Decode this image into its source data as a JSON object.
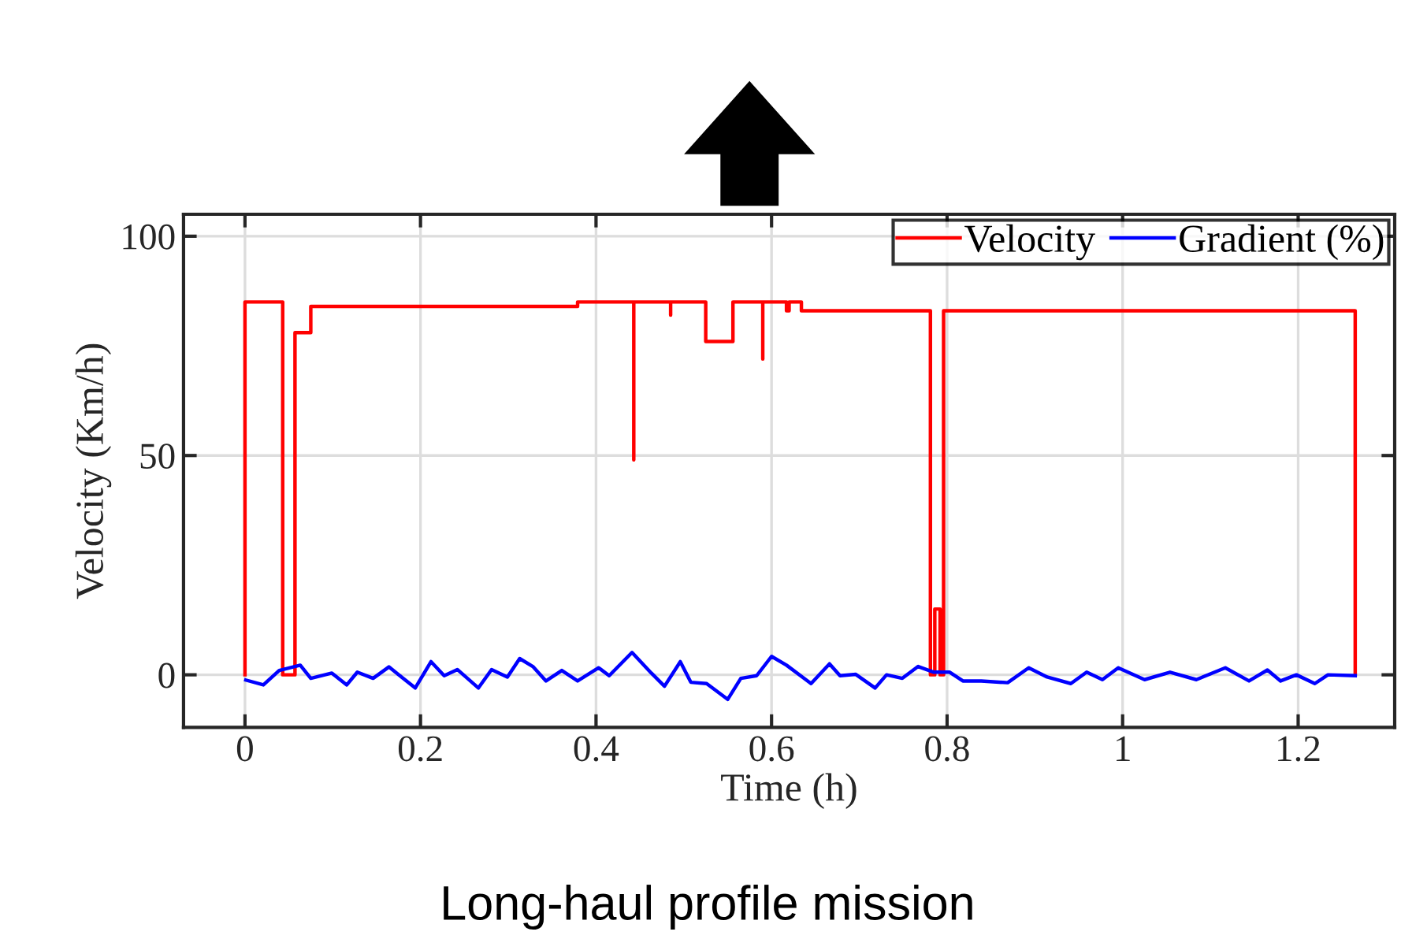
{
  "chart_data": {
    "type": "line",
    "xlabel": "Time (h)",
    "ylabel": "Velocity (Km/h)",
    "annotations": [
      "Long-haul profile mission"
    ],
    "xlim": [
      -0.07,
      1.31
    ],
    "xticks": [
      0,
      0.2,
      0.4,
      0.6,
      0.8,
      1,
      1.2
    ],
    "ylim": [
      -12,
      105
    ],
    "yticks": [
      0,
      50,
      100
    ],
    "grid": true,
    "legend": "top right",
    "marker": "none",
    "line_style": "solid",
    "series": [
      {
        "name": "Velocity",
        "color": "#ff0000",
        "x": [
          0,
          0,
          0.043,
          0.043,
          0.057,
          0.057,
          0.075,
          0.075,
          0.379,
          0.379,
          0.443,
          0.443,
          0.443,
          0.485,
          0.485,
          0.485,
          0.525,
          0.525,
          0.556,
          0.556,
          0.59,
          0.59,
          0.59,
          0.617,
          0.617,
          0.62,
          0.62,
          0.634,
          0.634,
          0.781,
          0.781,
          0.786,
          0.786,
          0.792,
          0.792,
          0.796,
          0.796,
          1.265,
          1.265
        ],
        "values": [
          0,
          85,
          85,
          0,
          0,
          78,
          78,
          84,
          84,
          85,
          85,
          49,
          85,
          85,
          82,
          85,
          85,
          76,
          76,
          85,
          85,
          72,
          85,
          85,
          83,
          83,
          85,
          85,
          83,
          83,
          0,
          0,
          15,
          15,
          0,
          0,
          83,
          83,
          0
        ]
      },
      {
        "name": "Gradient (%)",
        "color": "#0000ff",
        "x": [
          0.001,
          0.021,
          0.039,
          0.063,
          0.075,
          0.099,
          0.116,
          0.128,
          0.146,
          0.164,
          0.179,
          0.194,
          0.212,
          0.227,
          0.242,
          0.266,
          0.281,
          0.299,
          0.313,
          0.328,
          0.343,
          0.361,
          0.379,
          0.403,
          0.415,
          0.441,
          0.463,
          0.478,
          0.496,
          0.508,
          0.526,
          0.55,
          0.565,
          0.583,
          0.6,
          0.617,
          0.645,
          0.666,
          0.678,
          0.696,
          0.718,
          0.731,
          0.749,
          0.767,
          0.785,
          0.803,
          0.818,
          0.839,
          0.869,
          0.893,
          0.914,
          0.941,
          0.959,
          0.977,
          0.995,
          1.025,
          1.054,
          1.084,
          1.117,
          1.144,
          1.165,
          1.18,
          1.198,
          1.219,
          1.234,
          1.265
        ],
        "values": [
          -1.2,
          -2.3,
          1.0,
          2.2,
          -0.8,
          0.4,
          -2.3,
          0.6,
          -0.8,
          1.8,
          -0.6,
          -3.0,
          3.0,
          -0.2,
          1.2,
          -3.0,
          1.2,
          -0.5,
          3.7,
          1.9,
          -1.4,
          1.0,
          -1.4,
          1.6,
          -0.2,
          5.1,
          0.4,
          -2.6,
          3.0,
          -1.7,
          -2.0,
          -5.6,
          -0.8,
          -0.2,
          4.2,
          2.2,
          -2.0,
          2.5,
          -0.2,
          0.1,
          -3.0,
          0,
          -0.8,
          1.9,
          0.6,
          0.6,
          -1.4,
          -1.4,
          -1.8,
          1.6,
          -0.5,
          -2.0,
          0.6,
          -1.1,
          1.6,
          -1.1,
          0.6,
          -1.1,
          1.6,
          -1.4,
          1.1,
          -1.4,
          0,
          -2.0,
          0,
          -0.2
        ]
      }
    ]
  }
}
